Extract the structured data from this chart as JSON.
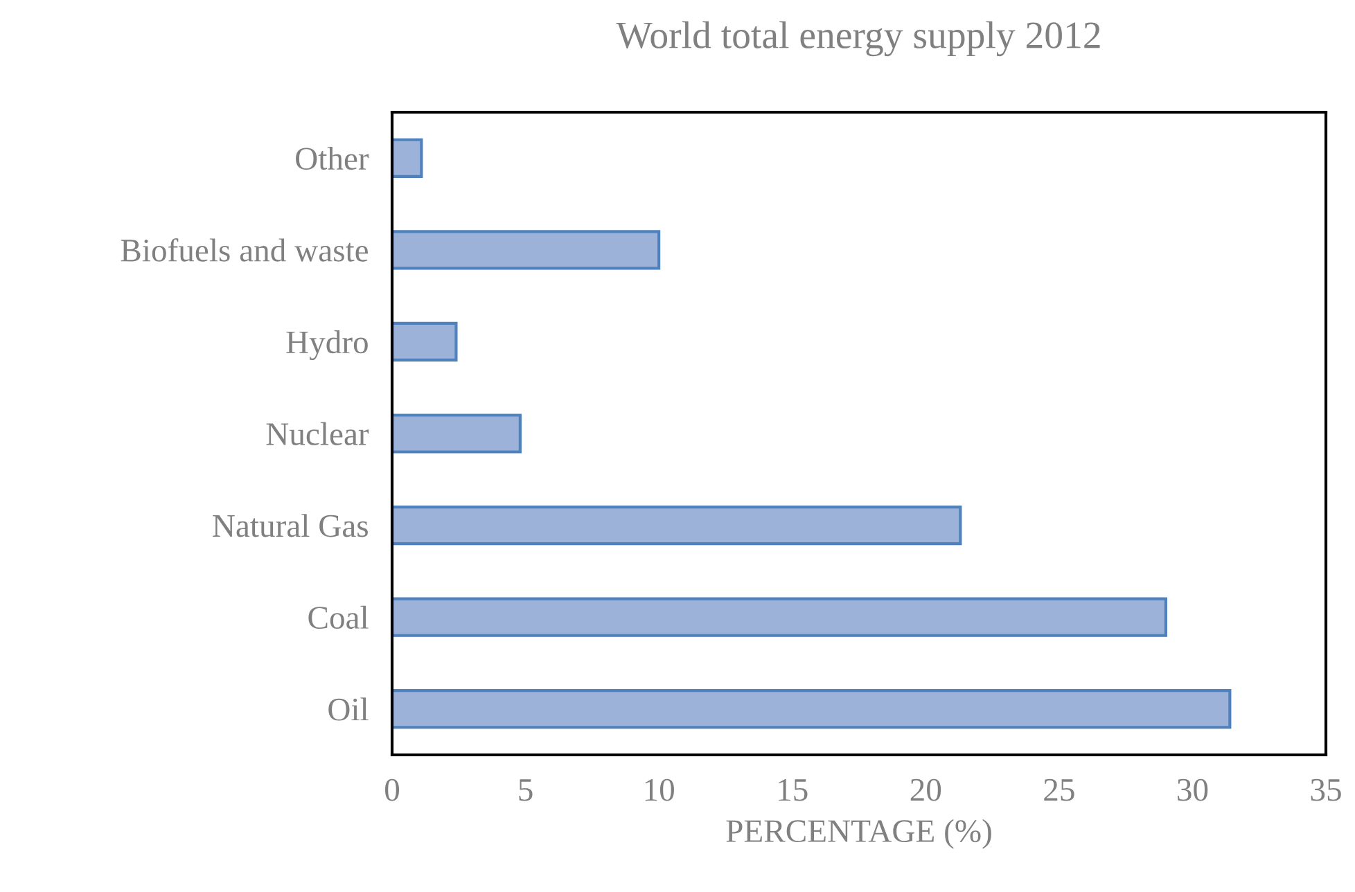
{
  "chart_data": {
    "type": "bar",
    "orientation": "horizontal",
    "title": "World total energy supply 2012",
    "xlabel": "PERCENTAGE (%)",
    "categories": [
      "Other",
      "Biofuels and waste",
      "Hydro",
      "Nuclear",
      "Natural Gas",
      "Coal",
      "Oil"
    ],
    "values": [
      1.1,
      10.0,
      2.4,
      4.8,
      21.3,
      29.0,
      31.4
    ],
    "color": "#9db2d8",
    "xlim": [
      0,
      35
    ],
    "xticks": [
      0,
      5,
      10,
      15,
      20,
      25,
      30,
      35
    ],
    "grid": false
  }
}
